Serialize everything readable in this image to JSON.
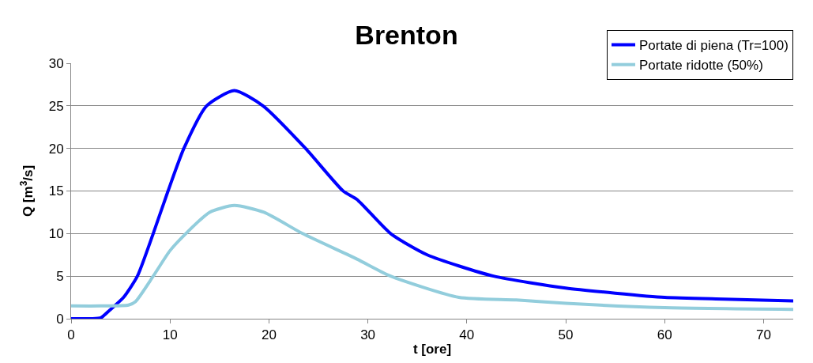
{
  "chart_data": {
    "type": "line",
    "title": "Brenton",
    "xlabel": "t [ore]",
    "ylabel": "Q [m$^{3}$/s]",
    "xlim": [
      0,
      73
    ],
    "xticks": [
      0,
      10,
      20,
      30,
      40,
      50,
      60,
      70
    ],
    "ylim": [
      0,
      30
    ],
    "yticks": [
      0,
      5,
      10,
      15,
      20,
      25,
      30
    ],
    "grid": "y",
    "legend": "top right",
    "marker": "none",
    "line_style": "solid",
    "series": [
      {
        "name": "Portate di piena (Tr=100)",
        "color": "#0000ff",
        "x": [
          0,
          2,
          3,
          3.9,
          5.3,
          6.7,
          8.3,
          9.8,
          11.4,
          13.7,
          16.5,
          19.4,
          23.7,
          27.5,
          28.9,
          32.3,
          36,
          42.7,
          50,
          55,
          60,
          66,
          73
        ],
        "values": [
          0,
          0,
          0.1,
          1,
          2.5,
          5,
          10,
          15,
          20,
          25,
          26.8,
          25,
          20,
          15,
          14,
          10,
          7.5,
          5,
          3.6,
          3,
          2.5,
          2.3,
          2.1
        ]
      },
      {
        "name": "Portate ridotte (50%)",
        "color": "#92cddc",
        "x": [
          0,
          3,
          5.8,
          6.5,
          8.3,
          10,
          11.6,
          14,
          16.5,
          19.5,
          23.4,
          28.9,
          32.3,
          39.2,
          45,
          50,
          60,
          73
        ],
        "values": [
          1.5,
          1.5,
          1.6,
          2,
          5,
          8,
          10,
          12.5,
          13.3,
          12.5,
          10,
          7,
          5,
          2.5,
          2.2,
          1.8,
          1.3,
          1.1
        ]
      }
    ]
  }
}
